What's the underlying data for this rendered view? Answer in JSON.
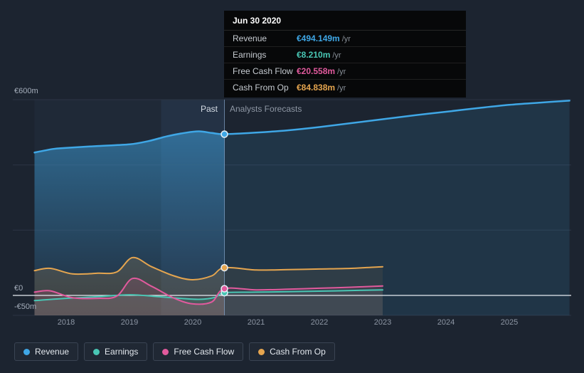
{
  "tooltip": {
    "title": "Jun 30 2020",
    "rows": [
      {
        "label": "Revenue",
        "value": "€494.149m",
        "suffix": "/yr",
        "color": "#3fa7e6"
      },
      {
        "label": "Earnings",
        "value": "€8.210m",
        "suffix": "/yr",
        "color": "#49c6b4"
      },
      {
        "label": "Free Cash Flow",
        "value": "€20.558m",
        "suffix": "/yr",
        "color": "#e15a9d"
      },
      {
        "label": "Cash From Op",
        "value": "€84.838m",
        "suffix": "/yr",
        "color": "#e5a54f"
      }
    ]
  },
  "labels": {
    "past": "Past",
    "forecast": "Analysts Forecasts"
  },
  "axis": {
    "y_top_label": "€600m",
    "y_zero_label": "€0",
    "y_neg_label": "-€50m",
    "x_ticks": [
      "2018",
      "2019",
      "2020",
      "2021",
      "2022",
      "2023",
      "2024",
      "2025"
    ]
  },
  "legend": {
    "items": [
      {
        "label": "Revenue",
        "color": "#3fa7e6"
      },
      {
        "label": "Earnings",
        "color": "#49c6b4"
      },
      {
        "label": "Free Cash Flow",
        "color": "#e15a9d"
      },
      {
        "label": "Cash From Op",
        "color": "#e5a54f"
      }
    ]
  },
  "chart_data": {
    "type": "line",
    "unit": "EUR millions per year",
    "x_unit": "year",
    "x_range": [
      2017.5,
      2025.95
    ],
    "ylim": [
      -60,
      600
    ],
    "divider_x": 2020.5,
    "divider_label_left": "Past",
    "divider_label_right": "Analysts Forecasts",
    "grid": true,
    "legend_position": "bottom-left",
    "series": [
      {
        "name": "Revenue",
        "color": "#3fa7e6",
        "x": [
          2017.5,
          2017.8,
          2018,
          2018.5,
          2019,
          2019.3,
          2019.6,
          2019.9,
          2020.1,
          2020.3,
          2020.5,
          2021,
          2021.5,
          2022,
          2022.5,
          2023,
          2023.5,
          2024,
          2024.5,
          2025,
          2025.5,
          2025.95
        ],
        "values": [
          438,
          449,
          452,
          458,
          463,
          473,
          488,
          499,
          503,
          498,
          494.149,
          499,
          506,
          516,
          528,
          540,
          552,
          563,
          574,
          584,
          591,
          597
        ]
      },
      {
        "name": "Earnings",
        "color": "#49c6b4",
        "x": [
          2017.5,
          2018,
          2018.5,
          2019,
          2019.4,
          2019.8,
          2020.1,
          2020.35,
          2020.5,
          2021,
          2021.5,
          2022,
          2022.5,
          2023
        ],
        "values": [
          -16,
          -9,
          -4,
          2,
          -3,
          -9,
          -12,
          -6,
          8.21,
          10,
          11.5,
          13,
          15,
          17
        ]
      },
      {
        "name": "Free Cash Flow",
        "color": "#e15a9d",
        "x": [
          2017.5,
          2017.75,
          2018.1,
          2018.5,
          2018.8,
          2019.05,
          2019.35,
          2019.7,
          2020,
          2020.3,
          2020.5,
          2021,
          2021.5,
          2022,
          2022.5,
          2023
        ],
        "values": [
          10,
          14,
          -7,
          -9,
          -2,
          52,
          28,
          -8,
          -26,
          -20,
          20.558,
          17,
          19,
          22,
          25,
          29
        ]
      },
      {
        "name": "Cash From Op",
        "color": "#e5a54f",
        "x": [
          2017.5,
          2017.75,
          2018.1,
          2018.5,
          2018.8,
          2019.05,
          2019.35,
          2019.7,
          2020,
          2020.3,
          2020.5,
          2021,
          2021.5,
          2022,
          2022.5,
          2023
        ],
        "values": [
          76,
          83,
          66,
          68,
          72,
          116,
          88,
          60,
          48,
          60,
          84.838,
          78,
          79,
          81,
          83,
          88
        ]
      }
    ],
    "markers_at_divider": {
      "Revenue": 494.149,
      "Earnings": 8.21,
      "Free Cash Flow": 20.558,
      "Cash From Op": 84.838
    }
  }
}
